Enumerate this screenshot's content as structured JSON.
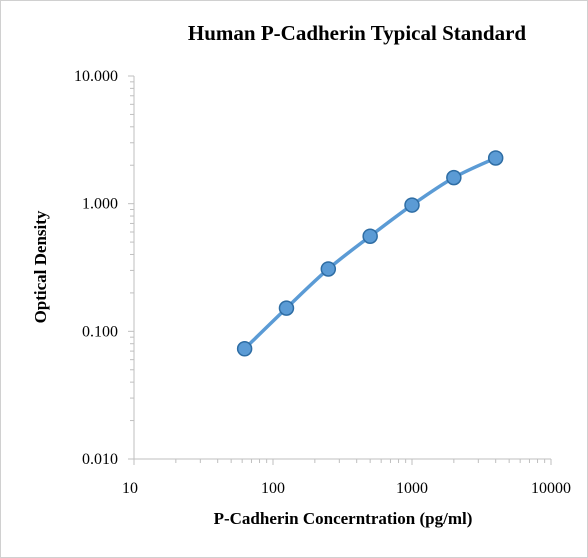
{
  "chart_data": {
    "type": "line",
    "title": "Human P-Cadherin Typical Standard",
    "xlabel": "P-Cadherin Concerntration (pg/ml)",
    "ylabel": "Optical Density",
    "x_scale": "log",
    "y_scale": "log",
    "xlim": [
      10,
      10000
    ],
    "ylim": [
      0.01,
      10
    ],
    "x_ticks": [
      "10",
      "100",
      "1000",
      "10000"
    ],
    "y_ticks": [
      "0.010",
      "0.100",
      "1.000",
      "10.000"
    ],
    "grid": false,
    "legend": "none",
    "series": [
      {
        "x": [
          62.5,
          125,
          250,
          500,
          1000,
          2000,
          4000
        ],
        "y": [
          0.073,
          0.152,
          0.308,
          0.556,
          0.975,
          1.6,
          2.28
        ]
      }
    ],
    "colors": {
      "line": "#5b9bd5",
      "marker_fill": "#5b9bd5",
      "marker_edge": "#2e6da4",
      "axis": "#bfbfbf"
    }
  }
}
